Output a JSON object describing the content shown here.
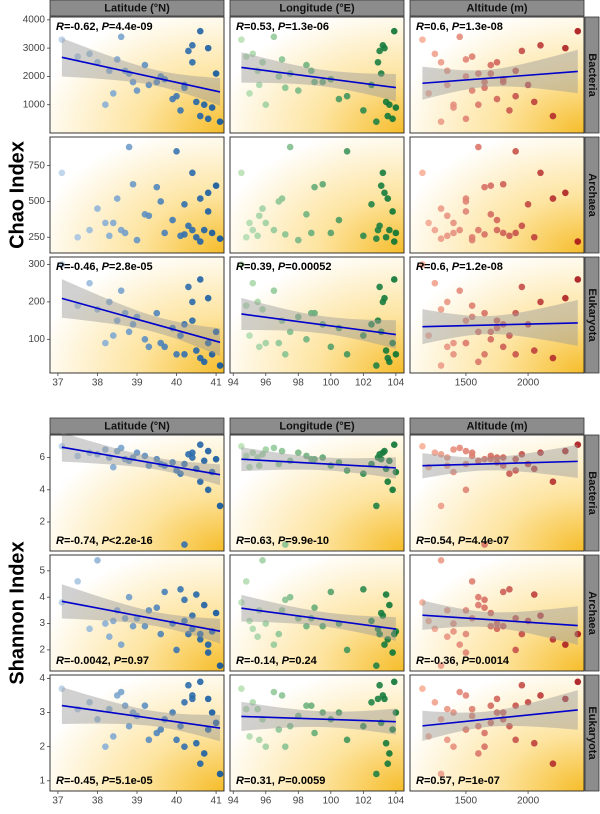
{
  "chart_data": [
    {
      "type": "scatter",
      "ylabel": "Chao Index",
      "columns": [
        {
          "label": "Latitude (°N)",
          "xlim": [
            36.8,
            41.2
          ],
          "xticks": [
            37,
            38,
            39,
            40,
            41
          ],
          "color_range": [
            "#c6dbef",
            "#08519c"
          ],
          "x": [
            37.1,
            37.8,
            38.0,
            38.2,
            38.3,
            38.5,
            38.6,
            38.8,
            39.0,
            39.2,
            39.5,
            39.7,
            39.9,
            40.0,
            40.1,
            40.2,
            40.3,
            40.4,
            40.5,
            40.6,
            40.7,
            40.8,
            40.9,
            41.0,
            41.1,
            38.4,
            39.6,
            40.2,
            38.9,
            37.5,
            40.6,
            39.3,
            40.4,
            38.7,
            40.8
          ]
        },
        {
          "label": "Longitude (°E)",
          "xlim": [
            93.8,
            104.5
          ],
          "xticks": [
            94,
            96,
            98,
            100,
            102,
            104
          ],
          "color_range": [
            "#c7e9c0",
            "#006d2c"
          ],
          "x": [
            94.5,
            95.2,
            95.8,
            96.0,
            95.5,
            97.0,
            96.5,
            97.5,
            98.0,
            98.5,
            99.0,
            100.0,
            100.5,
            101.0,
            102.0,
            102.5,
            103.0,
            103.2,
            103.4,
            103.5,
            103.6,
            103.8,
            104.0,
            103.1,
            102.8,
            95.0,
            96.8,
            97.2,
            99.5,
            94.8,
            103.9,
            95.6,
            102.9,
            98.8,
            103.3
          ]
        },
        {
          "label": "Altitude (m)",
          "xlim": [
            1050,
            2450
          ],
          "xticks": [
            1500,
            2000
          ],
          "color_range": [
            "#fcbba1",
            "#a50f15"
          ],
          "x": [
            1150,
            1250,
            1300,
            1400,
            1350,
            1500,
            1450,
            1600,
            1550,
            1700,
            1650,
            1800,
            1750,
            1900,
            1850,
            2000,
            1950,
            2100,
            2050,
            2200,
            1600,
            1500,
            1400,
            1700,
            1300,
            1200,
            1500,
            1650,
            1800,
            1550,
            2400,
            1350,
            1750,
            1900,
            2300
          ]
        }
      ],
      "rows": [
        {
          "label": "Bacteria",
          "ylim": [
            0,
            4100
          ],
          "yticks": [
            1000,
            2000,
            3000,
            4000
          ],
          "annotation_corner": "top-left",
          "annotations": [
            "R=-0.62, P=4.4e-09",
            "R=0.53, P=1.3e-06",
            "R=0.6, P=1.3e-08"
          ],
          "values": [
            3300,
            2800,
            2500,
            1000,
            2200,
            2600,
            3400,
            2100,
            1500,
            2400,
            1800,
            1900,
            1200,
            1300,
            800,
            1700,
            2900,
            3100,
            1100,
            600,
            1000,
            500,
            900,
            2100,
            400,
            1400,
            2000,
            1600,
            1800,
            2700,
            3600,
            1700,
            2500,
            2200,
            3000
          ]
        },
        {
          "label": "Archaea",
          "ylim": [
            140,
            950
          ],
          "yticks": [
            250,
            500,
            750
          ],
          "annotation_corner": "top-left",
          "annotations": null,
          "values": [
            700,
            300,
            450,
            350,
            260,
            520,
            300,
            880,
            230,
            410,
            600,
            280,
            370,
            850,
            260,
            480,
            330,
            700,
            250,
            520,
            300,
            430,
            280,
            610,
            240,
            350,
            500,
            270,
            620,
            250,
            220,
            400,
            300,
            280,
            560
          ]
        },
        {
          "label": "Eukaryota",
          "ylim": [
            10,
            320
          ],
          "yticks": [
            100,
            200,
            300
          ],
          "annotation_corner": "top-left",
          "annotations": [
            "R=-0.46, P=2.8e-05",
            "R=0.39, P=0.00052",
            "R=0.6, P=1.2e-08"
          ],
          "values": [
            300,
            250,
            180,
            90,
            200,
            150,
            230,
            120,
            160,
            100,
            170,
            80,
            130,
            60,
            110,
            140,
            240,
            200,
            70,
            50,
            40,
            90,
            60,
            120,
            30,
            110,
            90,
            60,
            140,
            190,
            260,
            80,
            150,
            170,
            210
          ]
        }
      ]
    },
    {
      "type": "scatter",
      "ylabel": "Shannon Index",
      "columns": [
        {
          "label": "Latitude (°N)",
          "xlim": [
            36.8,
            41.2
          ],
          "xticks": [
            37,
            38,
            39,
            40,
            41
          ],
          "color_range": [
            "#c6dbef",
            "#08519c"
          ],
          "x": [
            37.1,
            37.8,
            38.0,
            38.2,
            38.3,
            38.5,
            38.6,
            38.8,
            39.0,
            39.2,
            39.5,
            39.7,
            39.9,
            40.0,
            40.1,
            40.2,
            40.3,
            40.4,
            40.5,
            40.6,
            40.7,
            40.8,
            40.9,
            41.0,
            41.1,
            38.4,
            39.6,
            40.2,
            38.9,
            37.5,
            40.6,
            39.3,
            40.4,
            38.7,
            40.8
          ]
        },
        {
          "label": "Longitude (°E)",
          "xlim": [
            93.8,
            104.5
          ],
          "xticks": [
            94,
            96,
            98,
            100,
            102,
            104
          ],
          "color_range": [
            "#c7e9c0",
            "#006d2c"
          ],
          "x": [
            94.5,
            95.2,
            95.8,
            96.0,
            95.5,
            97.0,
            96.5,
            97.5,
            98.0,
            98.5,
            99.0,
            100.0,
            100.5,
            101.0,
            102.0,
            102.5,
            103.0,
            103.2,
            103.4,
            103.5,
            103.6,
            103.8,
            104.0,
            103.1,
            102.8,
            95.0,
            96.8,
            97.2,
            99.5,
            94.8,
            103.9,
            95.6,
            102.9,
            98.8,
            103.3
          ]
        },
        {
          "label": "Altitude (m)",
          "xlim": [
            1050,
            2450
          ],
          "xticks": [
            1500,
            2000
          ],
          "color_range": [
            "#fcbba1",
            "#a50f15"
          ],
          "x": [
            1150,
            1250,
            1300,
            1400,
            1350,
            1500,
            1450,
            1600,
            1550,
            1700,
            1650,
            1800,
            1750,
            1900,
            1850,
            2000,
            1950,
            2100,
            2050,
            2200,
            1600,
            1500,
            1400,
            1700,
            1300,
            1200,
            1500,
            1650,
            1800,
            1550,
            2400,
            1350,
            1750,
            1900,
            2300
          ]
        }
      ],
      "rows": [
        {
          "label": "Bacteria",
          "ylim": [
            0.2,
            7.4
          ],
          "yticks": [
            2,
            4,
            6
          ],
          "annotation_corner": "bottom-left",
          "annotations": [
            "R=-0.74, P<2.2e-16",
            "R=0.63, P=9.9e-10",
            "R=0.54, P=4.4e-07"
          ],
          "values": [
            6.7,
            6.3,
            6.2,
            6.5,
            6.0,
            6.4,
            6.6,
            5.8,
            6.3,
            6.1,
            5.9,
            5.5,
            5.7,
            5.2,
            5.0,
            5.6,
            6.2,
            6.3,
            5.3,
            4.5,
            5.8,
            4.0,
            5.1,
            5.9,
            3.0,
            5.4,
            5.6,
            0.6,
            6.0,
            6.1,
            6.8,
            5.5,
            6.0,
            5.9,
            6.4
          ]
        },
        {
          "label": "Archaea",
          "ylim": [
            1.2,
            5.6
          ],
          "yticks": [
            2,
            3,
            4,
            5
          ],
          "annotation_corner": "bottom-left",
          "annotations": [
            "R=-0.0042, P=0.97",
            "R=-0.14, P=0.24",
            "R=-0.36, P=0.0014"
          ],
          "values": [
            3.8,
            2.8,
            5.4,
            3.0,
            2.5,
            3.5,
            2.2,
            4.0,
            3.2,
            2.9,
            3.6,
            4.2,
            3.0,
            2.0,
            4.3,
            3.1,
            2.6,
            3.3,
            4.1,
            2.4,
            3.7,
            1.9,
            2.7,
            3.4,
            1.4,
            3.1,
            2.6,
            3.9,
            2.9,
            4.6,
            2.6,
            3.5,
            2.8,
            3.2,
            2.2
          ]
        },
        {
          "label": "Eukaryota",
          "ylim": [
            0.7,
            4.1
          ],
          "yticks": [
            1,
            2,
            3,
            4
          ],
          "annotation_corner": "bottom-left",
          "annotations": [
            "R=-0.45, P=5.1e-05",
            "R=0.31, P=0.0059",
            "R=0.57, P=1e-07"
          ],
          "values": [
            3.7,
            3.3,
            2.8,
            2.0,
            3.1,
            3.5,
            3.6,
            2.6,
            2.9,
            3.2,
            2.4,
            2.8,
            3.0,
            2.2,
            2.6,
            3.3,
            3.8,
            3.5,
            2.1,
            1.5,
            1.8,
            2.5,
            3.0,
            2.7,
            1.2,
            2.3,
            2.5,
            2.0,
            3.0,
            3.1,
            3.9,
            2.2,
            3.4,
            3.2,
            3.4
          ]
        }
      ]
    }
  ]
}
